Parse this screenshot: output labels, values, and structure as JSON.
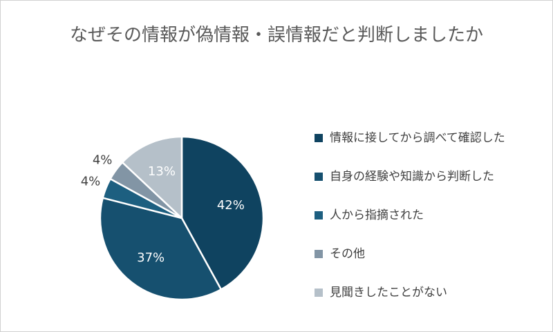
{
  "chart_data": {
    "type": "pie",
    "title": "なぜその情報が偽情報・誤情報だと判断しましたか",
    "categories": [
      "情報に接してから調べて確認した",
      "自身の経験や知識から判断した",
      "人から指摘された",
      "その他",
      "見聞きしたことがない"
    ],
    "values": [
      42,
      37,
      4,
      4,
      13
    ],
    "value_labels": [
      "42%",
      "37%",
      "4%",
      "4%",
      "13%"
    ],
    "colors": [
      "#0f4360",
      "#16506f",
      "#1d5f80",
      "#8295a5",
      "#b5c0c9"
    ],
    "legend": "right"
  }
}
